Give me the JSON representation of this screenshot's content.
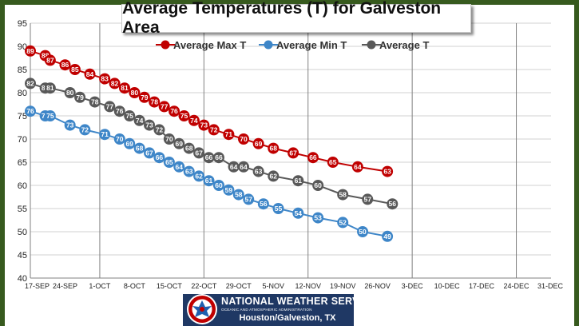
{
  "chart_data": {
    "type": "line",
    "title": "Average Temperatures (T) for Galveston Area",
    "xlabel": "",
    "ylabel": "",
    "ylim": [
      40,
      95
    ],
    "yticks": [
      40,
      45,
      50,
      55,
      60,
      65,
      70,
      75,
      80,
      85,
      90,
      95
    ],
    "x_tick_labels": [
      "17-SEP",
      "24-SEP",
      "1-OCT",
      "8-OCT",
      "15-OCT",
      "22-OCT",
      "29-OCT",
      "5-NOV",
      "12-NOV",
      "19-NOV",
      "26-NOV",
      "3-DEC",
      "10-DEC",
      "17-DEC",
      "24-DEC",
      "31-DEC"
    ],
    "x_vertical_grid_ticks": [
      2,
      5,
      8,
      11,
      14
    ],
    "grid": true,
    "legend_position": "top",
    "series": [
      {
        "name": "Average Max T",
        "color": "#c00000",
        "points": [
          [
            0,
            89
          ],
          [
            3,
            88
          ],
          [
            4,
            87
          ],
          [
            7,
            86
          ],
          [
            9,
            85
          ],
          [
            12,
            84
          ],
          [
            15,
            83
          ],
          [
            17,
            82
          ],
          [
            19,
            81
          ],
          [
            21,
            80
          ],
          [
            23,
            79
          ],
          [
            25,
            78
          ],
          [
            27,
            77
          ],
          [
            29,
            76
          ],
          [
            31,
            75
          ],
          [
            33,
            74
          ],
          [
            35,
            73
          ],
          [
            37,
            72
          ],
          [
            40,
            71
          ],
          [
            43,
            70
          ],
          [
            46,
            69
          ],
          [
            49,
            68
          ],
          [
            53,
            67
          ],
          [
            57,
            66
          ],
          [
            61,
            65
          ],
          [
            66,
            64
          ],
          [
            72,
            63
          ]
        ]
      },
      {
        "name": "Average Min T",
        "color": "#3e86c8",
        "points": [
          [
            0,
            76
          ],
          [
            3,
            75
          ],
          [
            4,
            75
          ],
          [
            8,
            73
          ],
          [
            11,
            72
          ],
          [
            15,
            71
          ],
          [
            18,
            70
          ],
          [
            20,
            69
          ],
          [
            22,
            68
          ],
          [
            24,
            67
          ],
          [
            26,
            66
          ],
          [
            28,
            65
          ],
          [
            30,
            64
          ],
          [
            32,
            63
          ],
          [
            34,
            62
          ],
          [
            36,
            61
          ],
          [
            38,
            60
          ],
          [
            40,
            59
          ],
          [
            42,
            58
          ],
          [
            44,
            57
          ],
          [
            47,
            56
          ],
          [
            50,
            55
          ],
          [
            54,
            54
          ],
          [
            58,
            53
          ],
          [
            63,
            52
          ],
          [
            67,
            50
          ],
          [
            72,
            49
          ]
        ]
      },
      {
        "name": "Average T",
        "color": "#595959",
        "points": [
          [
            0,
            82
          ],
          [
            3,
            81
          ],
          [
            4,
            81
          ],
          [
            8,
            80
          ],
          [
            10,
            79
          ],
          [
            13,
            78
          ],
          [
            16,
            77
          ],
          [
            18,
            76
          ],
          [
            20,
            75
          ],
          [
            22,
            74
          ],
          [
            24,
            73
          ],
          [
            26,
            72
          ],
          [
            28,
            70
          ],
          [
            30,
            69
          ],
          [
            32,
            68
          ],
          [
            34,
            67
          ],
          [
            36,
            66
          ],
          [
            38,
            66
          ],
          [
            41,
            64
          ],
          [
            43,
            64
          ],
          [
            46,
            63
          ],
          [
            49,
            62
          ],
          [
            54,
            61
          ],
          [
            58,
            60
          ],
          [
            63,
            58
          ],
          [
            68,
            57
          ],
          [
            73,
            56
          ]
        ]
      }
    ]
  },
  "footer": {
    "title": "NATIONAL WEATHER SERVICE",
    "subtitle": "OCEANIC AND ATMOSPHERIC ADMINISTRATION",
    "office": "Houston/Galveston, TX",
    "logo_color": "#1f5fae"
  }
}
